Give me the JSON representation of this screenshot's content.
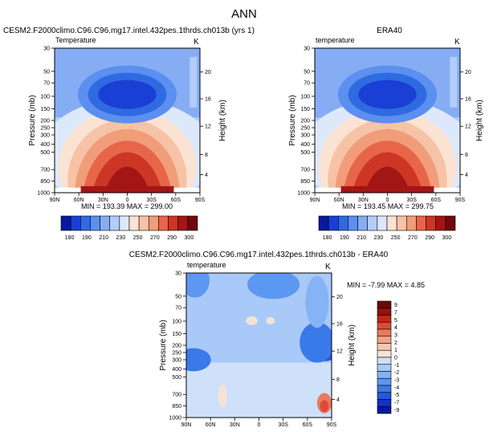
{
  "page": {
    "title": "ANN"
  },
  "colors": {
    "ref_ramp": [
      "#08199c",
      "#1a3fd4",
      "#2f6ae0",
      "#5b8ff0",
      "#86adf3",
      "#b2cdf9",
      "#dde9fb",
      "#fbe3d3",
      "#f6c3a6",
      "#f19d7a",
      "#e7664a",
      "#cd3624",
      "#a21615",
      "#700a0c"
    ],
    "diff_ramp": [
      "#08199c",
      "#1431c4",
      "#2457dc",
      "#3a79e8",
      "#5c97f2",
      "#86b3f6",
      "#a9c9f8",
      "#cfe0fb",
      "#f5e3d5",
      "#f6c7b0",
      "#f2a386",
      "#ea7a5c",
      "#dc4b35",
      "#c42517",
      "#961010",
      "#6d080a"
    ]
  },
  "chart_data": [
    {
      "type": "heatmap",
      "title": "CESM2.F2000climo.C96.C96.mg17.intel.432pes.1thrds.ch013b (yrs 1)",
      "corner_left": "Temperature",
      "corner_right": "K",
      "ylabel": "Pressure (mb)",
      "ylabel_right": "Height (km)",
      "x_ticks": [
        "90N",
        "60N",
        "30N",
        "0",
        "30S",
        "60S",
        "90S"
      ],
      "y_ticks": [
        "30",
        "50",
        "70",
        "100",
        "150",
        "200",
        "250",
        "300",
        "400",
        "500",
        "700",
        "850",
        "1000"
      ],
      "y_ticks_right": [
        "20",
        "16",
        "12",
        "8",
        "4"
      ],
      "min": 193.39,
      "max": 299.0,
      "stats_text": "MIN = 193.39   MAX = 299.00",
      "colorbar_labels": [
        "180",
        "190",
        "210",
        "230",
        "250",
        "270",
        "290",
        "300"
      ]
    },
    {
      "type": "heatmap",
      "title": "ERA40",
      "corner_left": "temperature",
      "corner_right": "K",
      "ylabel": "Pressure (mb)",
      "ylabel_right": "Height (km)",
      "x_ticks": [
        "90N",
        "60N",
        "30N",
        "0",
        "30S",
        "60S",
        "90S"
      ],
      "y_ticks": [
        "30",
        "50",
        "70",
        "100",
        "150",
        "200",
        "250",
        "300",
        "400",
        "500",
        "700",
        "850",
        "1000"
      ],
      "y_ticks_right": [
        "20",
        "16",
        "12",
        "8",
        "4"
      ],
      "min": 193.45,
      "max": 299.75,
      "stats_text": "MIN = 193.45   MAX = 299.75",
      "colorbar_labels": [
        "180",
        "190",
        "210",
        "230",
        "250",
        "270",
        "290",
        "300"
      ]
    },
    {
      "type": "heatmap",
      "title": "CESM2.F2000climo.C96.C96.mg17.intel.432pes.1thrds.ch013b - ERA40",
      "corner_left": "temperature",
      "corner_right": "K",
      "ylabel": "Pressure (mb)",
      "ylabel_right": "Height (km)",
      "x_ticks": [
        "90N",
        "60N",
        "30N",
        "0",
        "30S",
        "60S",
        "90S"
      ],
      "y_ticks": [
        "30",
        "50",
        "70",
        "100",
        "150",
        "200",
        "250",
        "300",
        "400",
        "500",
        "700",
        "850",
        "1000"
      ],
      "y_ticks_right": [
        "20",
        "16",
        "12",
        "8",
        "4"
      ],
      "min": -7.99,
      "max": 4.85,
      "stats_text": "MIN = -7.99  MAX =  4.85",
      "colorbar_labels": [
        "9",
        "7",
        "5",
        "4",
        "3",
        "2",
        "1",
        "0",
        "-1",
        "-2",
        "-3",
        "-4",
        "-5",
        "-7",
        "-9"
      ]
    }
  ]
}
